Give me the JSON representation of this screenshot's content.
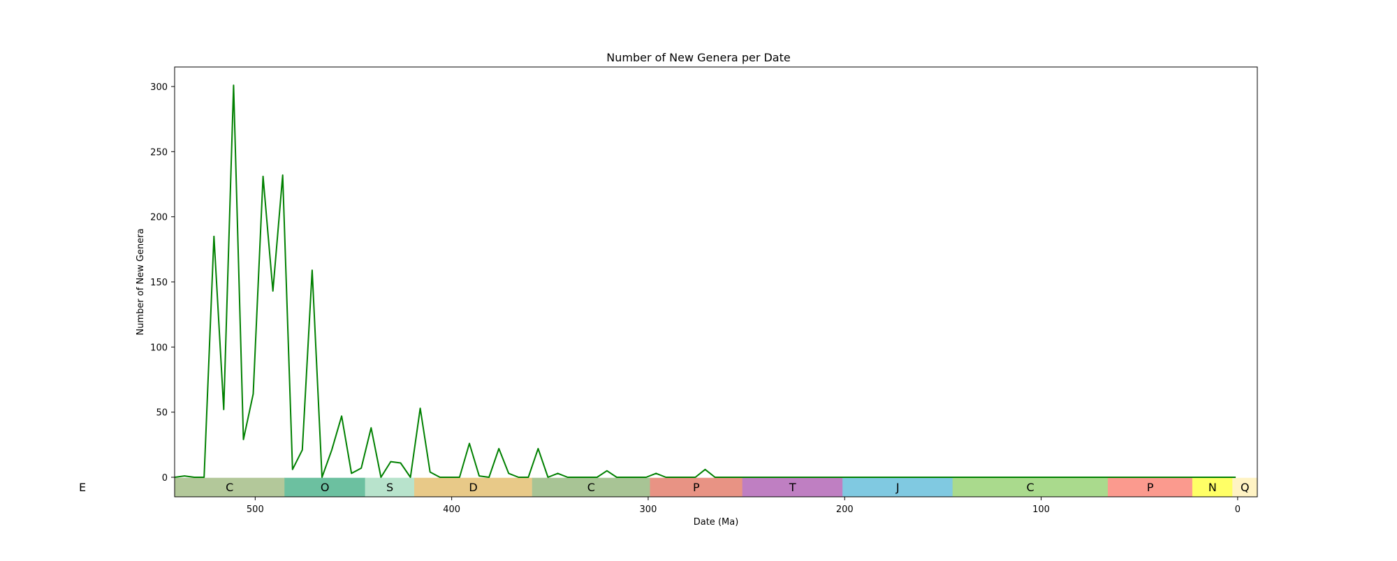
{
  "chart_data": {
    "type": "line",
    "title": "Number of New Genera per Date",
    "xlabel": "Date (Ma)",
    "ylabel": "Number of New Genera",
    "xlim": [
      541,
      -10
    ],
    "ylim": [
      -15,
      315
    ],
    "x_ticks": [
      500,
      400,
      300,
      200,
      100,
      0
    ],
    "y_ticks": [
      0,
      50,
      100,
      150,
      200,
      250,
      300
    ],
    "grid": false,
    "series": [
      {
        "color": "#008000",
        "x": [
          541,
          536,
          531,
          526,
          521,
          516,
          511,
          506,
          501,
          496,
          491,
          486,
          481,
          476,
          471,
          466,
          461,
          456,
          451,
          446,
          441,
          436,
          431,
          426,
          421,
          416,
          411,
          406,
          401,
          396,
          391,
          386,
          381,
          376,
          371,
          366,
          361,
          356,
          351,
          346,
          341,
          336,
          331,
          326,
          321,
          316,
          311,
          306,
          301,
          296,
          291,
          286,
          281,
          276,
          271,
          266,
          261,
          256,
          251,
          246,
          241,
          236,
          231,
          226,
          221,
          216,
          211,
          206,
          201,
          196,
          191,
          186,
          181,
          176,
          171,
          166,
          161,
          156,
          151,
          146,
          141,
          136,
          131,
          126,
          121,
          116,
          111,
          106,
          101,
          96,
          91,
          86,
          81,
          76,
          71,
          66,
          61,
          56,
          51,
          46,
          41,
          36,
          31,
          26,
          21,
          16,
          11,
          6,
          1
        ],
        "y": [
          0,
          1,
          0,
          0,
          185,
          52,
          301,
          29,
          64,
          231,
          143,
          232,
          6,
          21,
          159,
          0,
          21,
          47,
          3,
          7,
          38,
          0,
          12,
          11,
          0,
          53,
          4,
          0,
          0,
          0,
          26,
          1,
          0,
          22,
          3,
          0,
          0,
          22,
          0,
          3,
          0,
          0,
          0,
          0,
          5,
          0,
          0,
          0,
          0,
          3,
          0,
          0,
          0,
          0,
          6,
          0,
          0,
          0,
          0,
          0,
          0,
          0,
          0,
          0,
          0,
          0,
          0,
          0,
          0,
          0,
          0,
          0,
          0,
          0,
          0,
          0,
          0,
          0,
          0,
          0,
          0,
          0,
          0,
          0,
          0,
          0,
          0,
          0,
          0,
          0,
          0,
          0,
          0,
          0,
          0,
          0,
          0,
          0,
          0,
          0,
          0,
          0,
          0,
          0,
          0,
          0,
          0,
          0,
          0
        ]
      }
    ],
    "periods": [
      {
        "label": "E",
        "start": 1000,
        "end": 541,
        "color": "#ffffff"
      },
      {
        "label": "C",
        "start": 541,
        "end": 485,
        "color": "#b3c89a"
      },
      {
        "label": "O",
        "start": 485,
        "end": 444,
        "color": "#6cc0a0"
      },
      {
        "label": "S",
        "start": 444,
        "end": 419,
        "color": "#b8e3cc"
      },
      {
        "label": "D",
        "start": 419,
        "end": 359,
        "color": "#e8c988"
      },
      {
        "label": "C",
        "start": 359,
        "end": 299,
        "color": "#a8c495"
      },
      {
        "label": "P",
        "start": 299,
        "end": 252,
        "color": "#e89384"
      },
      {
        "label": "T",
        "start": 252,
        "end": 201,
        "color": "#bf7fc2"
      },
      {
        "label": "J",
        "start": 201,
        "end": 145,
        "color": "#80c9e1"
      },
      {
        "label": "C",
        "start": 145,
        "end": 66,
        "color": "#aada8d"
      },
      {
        "label": "P",
        "start": 66,
        "end": 23,
        "color": "#fb9a8e"
      },
      {
        "label": "N",
        "start": 23,
        "end": 2.6,
        "color": "#ffff66"
      },
      {
        "label": "Q",
        "start": 2.6,
        "end": -10,
        "color": "#fff3c4"
      }
    ]
  }
}
